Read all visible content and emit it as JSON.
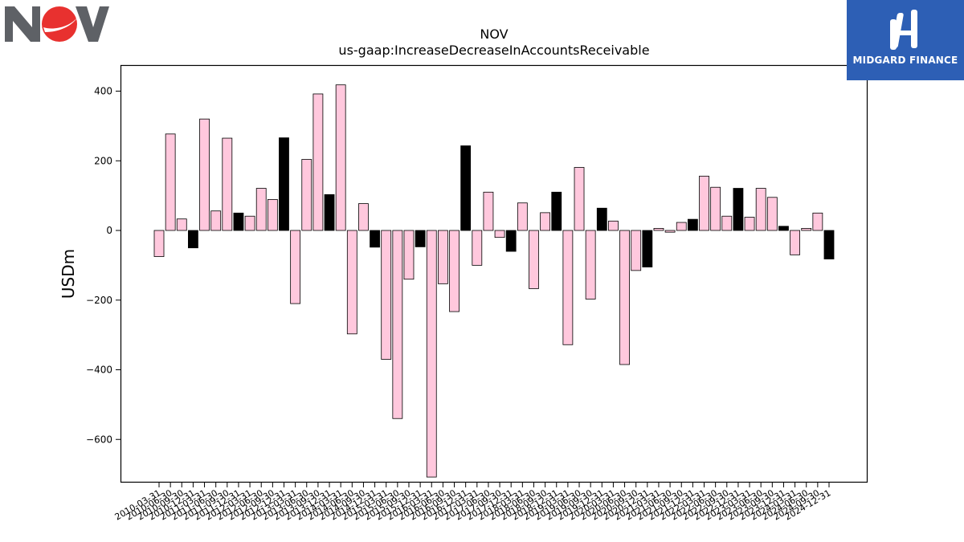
{
  "company_logo": {
    "text": "NOV",
    "colors": {
      "gray": "#5e6166",
      "red": "#e8312f"
    }
  },
  "sponsor_logo": {
    "text": "MIDGARD FINANCE",
    "color": "#2d5fb5"
  },
  "chart_data": {
    "type": "bar",
    "title": "NOV",
    "subtitle": "us-gaap:IncreaseDecreaseInAccountsReceivable",
    "ylabel": "USDm",
    "xlabel": "",
    "ylim": [
      -720,
      475
    ],
    "yticks": [
      -600,
      -400,
      -200,
      0,
      200,
      400
    ],
    "ytick_labels": [
      "−600",
      "−400",
      "−200",
      "0",
      "200",
      "400"
    ],
    "grid": false,
    "legend": "none",
    "colors": {
      "quarter": "#ffc8dd",
      "annual": "#000000",
      "edge": "#000000"
    },
    "categories": [
      "2010-03-31",
      "2010-06-30",
      "2010-09-30",
      "2010-12-31",
      "2011-03-31",
      "2011-06-30",
      "2011-09-30",
      "2011-12-31",
      "2012-03-31",
      "2012-06-30",
      "2012-09-30",
      "2012-12-31",
      "2013-03-31",
      "2013-06-30",
      "2013-09-30",
      "2013-12-31",
      "2014-03-31",
      "2014-06-30",
      "2014-09-30",
      "2014-12-31",
      "2015-03-31",
      "2015-06-30",
      "2015-09-30",
      "2015-12-31",
      "2016-03-31",
      "2016-06-30",
      "2016-09-30",
      "2016-12-31",
      "2017-03-31",
      "2017-06-30",
      "2017-09-30",
      "2017-12-31",
      "2018-03-31",
      "2018-06-30",
      "2018-09-30",
      "2018-12-31",
      "2019-03-31",
      "2019-06-30",
      "2019-09-30",
      "2019-12-31",
      "2020-03-31",
      "2020-06-30",
      "2020-09-30",
      "2020-12-31",
      "2021-03-31",
      "2021-06-30",
      "2021-09-30",
      "2021-12-31",
      "2022-03-31",
      "2022-06-30",
      "2022-09-30",
      "2022-12-31",
      "2023-03-31",
      "2023-06-30",
      "2023-09-30",
      "2023-12-31",
      "2024-03-31",
      "2024-06-30",
      "2024-09-30",
      "2024-12-31"
    ],
    "values": [
      -75,
      277,
      33,
      -50,
      320,
      56,
      265,
      50,
      41,
      121,
      89,
      266,
      -210,
      204,
      392,
      103,
      418,
      -297,
      77,
      -48,
      -370,
      -540,
      -140,
      -47,
      -708,
      -153,
      -233,
      243,
      -100,
      110,
      -20,
      -60,
      79,
      -167,
      51,
      110,
      -328,
      181,
      -197,
      64,
      27,
      -385,
      -115,
      -105,
      6,
      -5,
      23,
      32,
      156,
      124,
      41,
      121,
      38,
      121,
      95,
      12,
      -70,
      6,
      50,
      -82
    ],
    "annual": [
      false,
      false,
      false,
      true,
      false,
      false,
      false,
      true,
      false,
      false,
      false,
      true,
      false,
      false,
      false,
      true,
      false,
      false,
      false,
      true,
      false,
      false,
      false,
      true,
      false,
      false,
      false,
      true,
      false,
      false,
      false,
      true,
      false,
      false,
      false,
      true,
      false,
      false,
      false,
      true,
      false,
      false,
      false,
      true,
      false,
      false,
      false,
      true,
      false,
      false,
      false,
      true,
      false,
      false,
      false,
      true,
      false,
      false,
      false,
      true
    ]
  }
}
